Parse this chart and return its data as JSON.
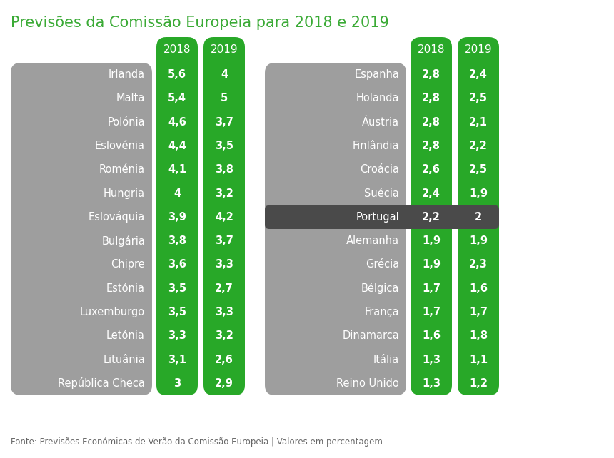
{
  "title": "Previsões da Comissão Europeia para 2018 e 2019",
  "footer": "Fonte: Previsões Económicas de Verão da Comissão Europeia | Valores em percentagem",
  "left_countries": [
    "Irlanda",
    "Malta",
    "Polónia",
    "Eslovénia",
    "Roménia",
    "Hungria",
    "Eslováquia",
    "Bulgária",
    "Chipre",
    "Estónia",
    "Luxemburgo",
    "Letónia",
    "Lituânia",
    "República Checa"
  ],
  "left_2018": [
    "5,6",
    "5,4",
    "4,6",
    "4,4",
    "4,1",
    "4",
    "3,9",
    "3,8",
    "3,6",
    "3,5",
    "3,5",
    "3,3",
    "3,1",
    "3"
  ],
  "left_2019": [
    "4",
    "5",
    "3,7",
    "3,5",
    "3,8",
    "3,2",
    "4,2",
    "3,7",
    "3,3",
    "2,7",
    "3,3",
    "3,2",
    "2,6",
    "2,9"
  ],
  "right_countries": [
    "Espanha",
    "Holanda",
    "Áustria",
    "Finlândia",
    "Croácia",
    "Suécia",
    "Portugal",
    "Alemanha",
    "Grécia",
    "Bélgica",
    "França",
    "Dinamarca",
    "Itália",
    "Reino Unido"
  ],
  "right_2018": [
    "2,8",
    "2,8",
    "2,8",
    "2,8",
    "2,6",
    "2,4",
    "2,2",
    "1,9",
    "1,9",
    "1,7",
    "1,7",
    "1,6",
    "1,3",
    "1,3"
  ],
  "right_2019": [
    "2,4",
    "2,5",
    "2,1",
    "2,2",
    "2,5",
    "1,9",
    "2",
    "1,9",
    "2,3",
    "1,6",
    "1,7",
    "1,8",
    "1,1",
    "1,2"
  ],
  "portugal_row": 6,
  "green_color": "#28a828",
  "gray_color": "#9e9e9e",
  "dark_gray_portugal": "#4a4a4a",
  "bg_color": "#ffffff",
  "title_color": "#3aaa35",
  "footer_color": "#666666",
  "white": "#ffffff",
  "fig_w": 8.6,
  "fig_h": 6.42,
  "dpi": 100
}
